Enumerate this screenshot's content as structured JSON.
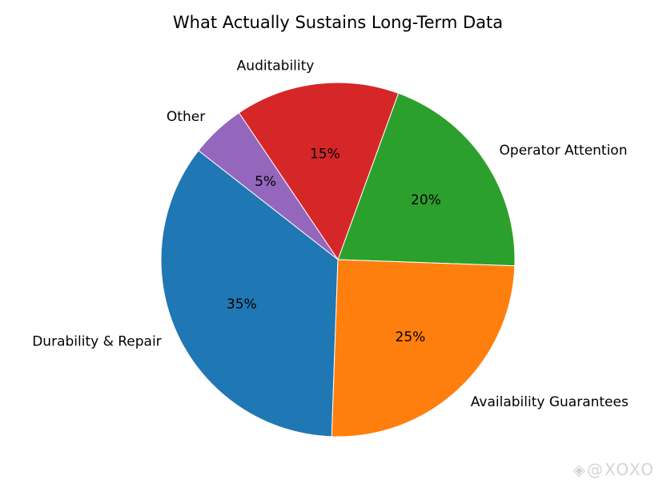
{
  "chart_data": {
    "type": "pie",
    "title": "What Actually Sustains Long-Term Data",
    "slices": [
      {
        "label": "Operator Attention",
        "value": 20,
        "pct_label": "20%",
        "color": "#2ca02c"
      },
      {
        "label": "Auditability",
        "value": 15,
        "pct_label": "15%",
        "color": "#d62728"
      },
      {
        "label": "Other",
        "value": 5,
        "pct_label": "5%",
        "color": "#9467bd"
      },
      {
        "label": "Durability & Repair",
        "value": 35,
        "pct_label": "35%",
        "color": "#1f77b4"
      },
      {
        "label": "Availability Guarantees",
        "value": 25,
        "pct_label": "25%",
        "color": "#ff7f0e"
      }
    ],
    "start_angle_deg": -2,
    "direction": "counterclockwise",
    "legend": "none"
  },
  "watermark": {
    "text": "@XOXO",
    "icon": "diamond-logo-icon"
  }
}
